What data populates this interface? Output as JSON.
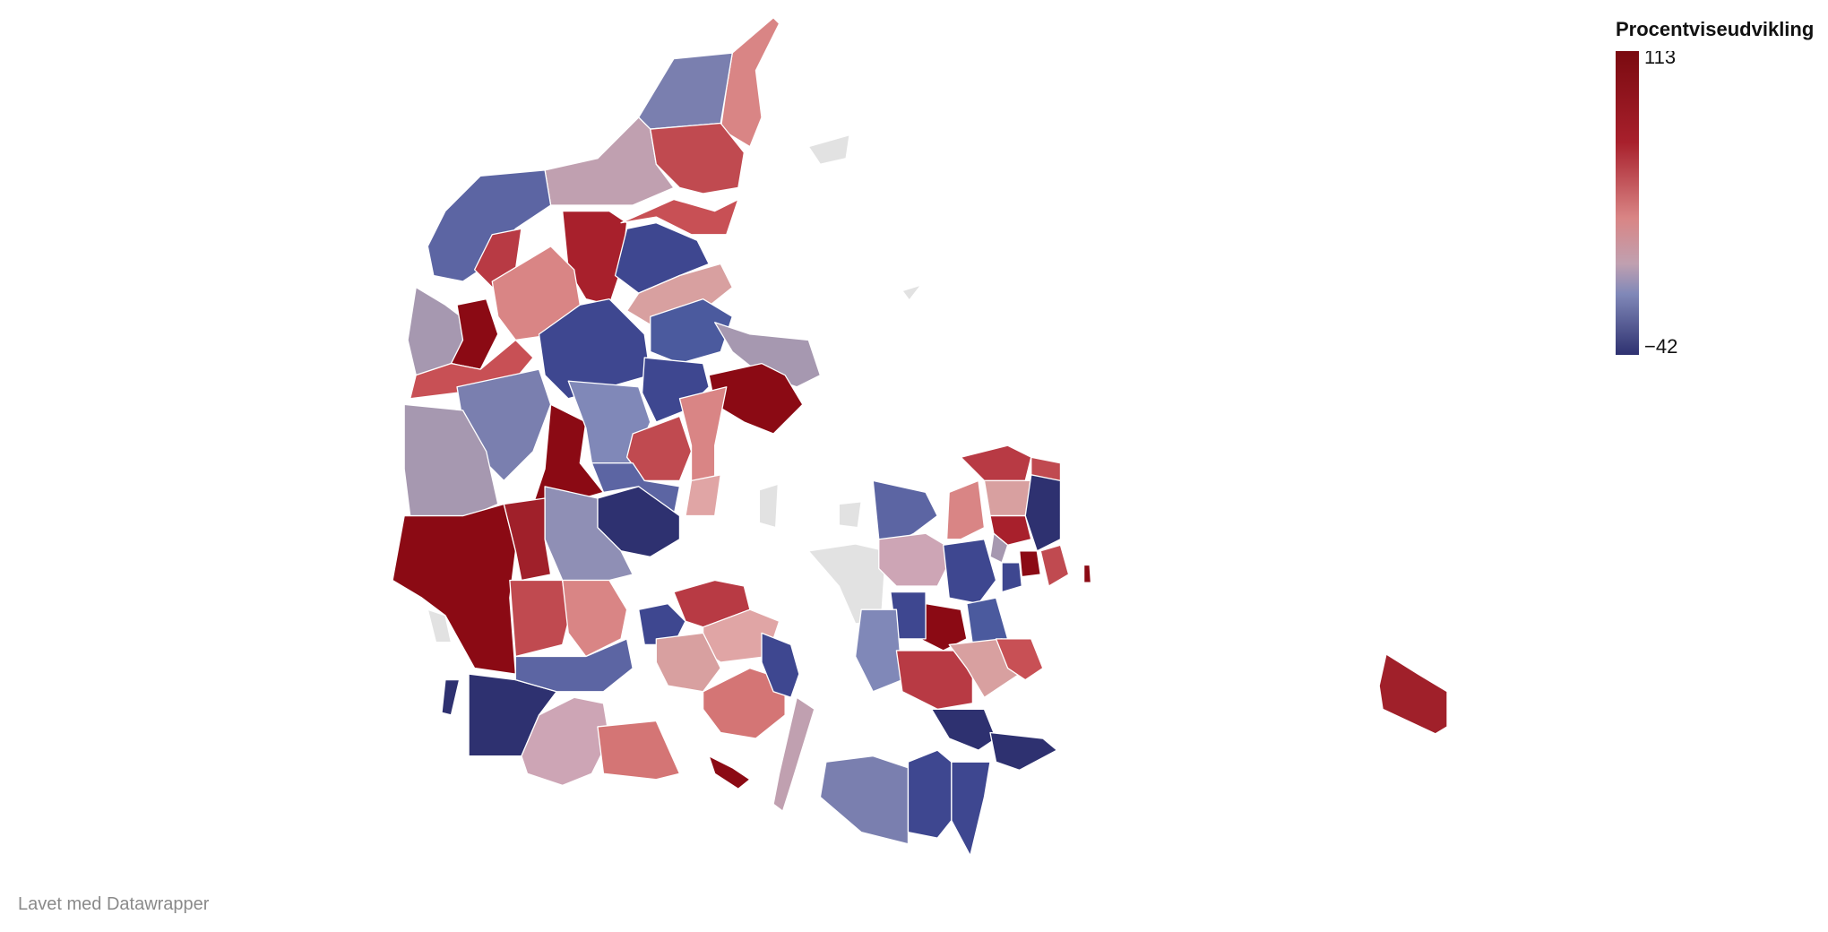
{
  "legend": {
    "title": "Procentviseudvikling",
    "ticks": [
      113,
      {
        "value": -42,
        "label": "−42"
      }
    ]
  },
  "footer": "Lavet med Datawrapper"
}
